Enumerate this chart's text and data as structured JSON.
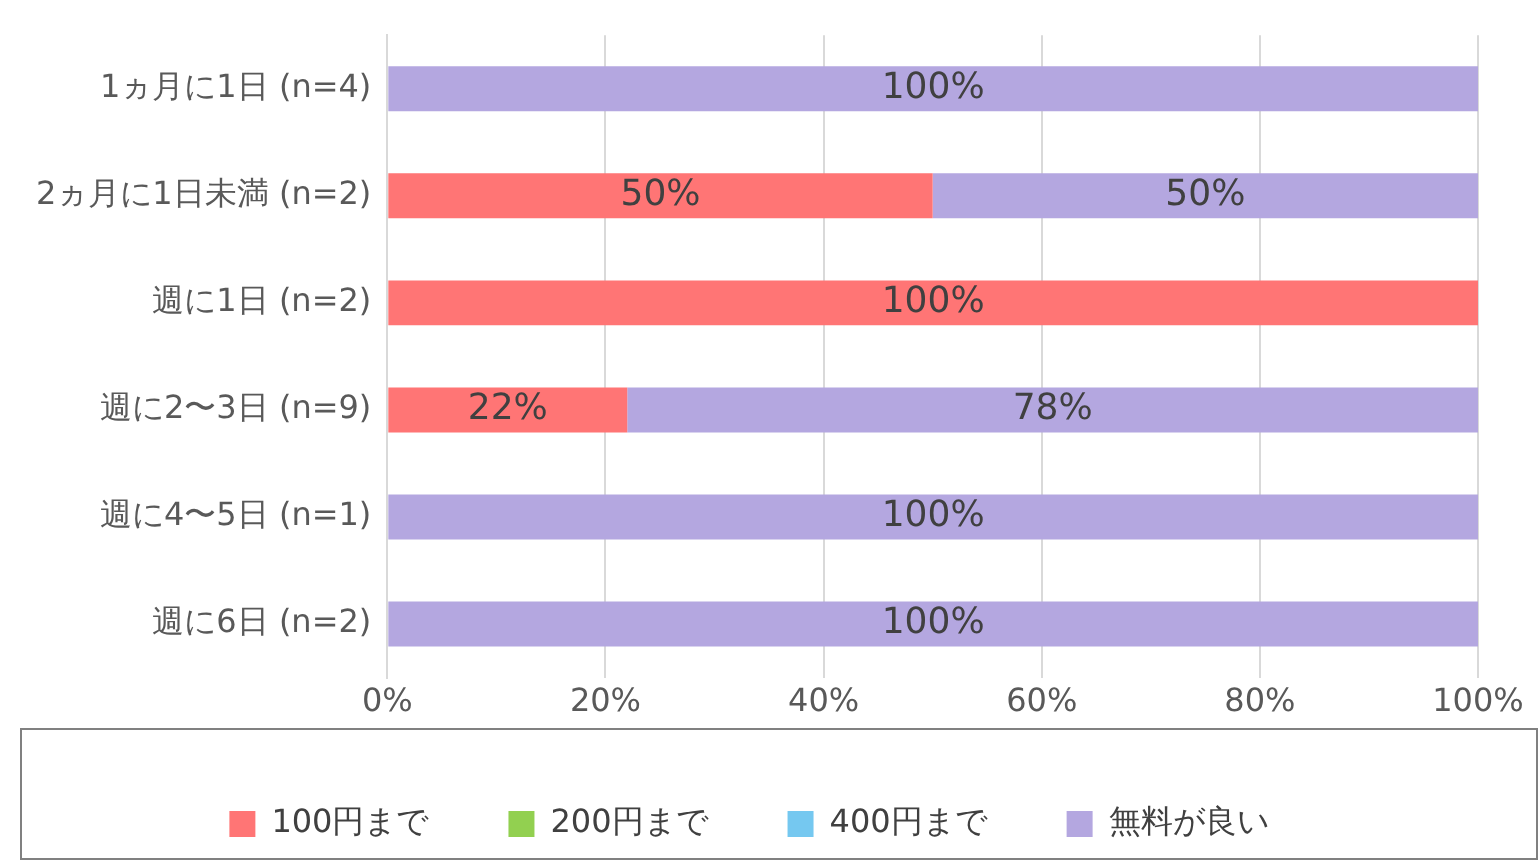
{
  "chart_data": {
    "type": "bar",
    "orientation": "horizontal",
    "stacked": true,
    "categories": [
      "1ヵ月に1日 (n=4)",
      "2ヵ月に1日未満 (n=2)",
      "週に1日 (n=2)",
      "週に2〜3日 (n=9)",
      "週に4〜5日 (n=1)",
      "週に6日 (n=2)"
    ],
    "series": [
      {
        "name": "100円まで",
        "color": "#ff7575",
        "values": [
          0,
          50,
          100,
          22,
          0,
          0
        ],
        "value_labels": [
          null,
          "50%",
          "100%",
          "22%",
          null,
          null
        ]
      },
      {
        "name": "200円まで",
        "color": "#92d050",
        "values": [
          0,
          0,
          0,
          0,
          0,
          0
        ],
        "value_labels": [
          null,
          null,
          null,
          null,
          null,
          null
        ]
      },
      {
        "name": "400円まで",
        "color": "#75c8f0",
        "values": [
          0,
          0,
          0,
          0,
          0,
          0
        ],
        "value_labels": [
          null,
          null,
          null,
          null,
          null,
          null
        ]
      },
      {
        "name": "無料が良い",
        "color": "#b4a7e0",
        "values": [
          100,
          50,
          0,
          78,
          100,
          100
        ],
        "value_labels": [
          "100%",
          "50%",
          null,
          "78%",
          "100%",
          "100%"
        ]
      }
    ],
    "xlim": [
      0,
      100
    ],
    "xticks": [
      {
        "value": 0,
        "label": "0%"
      },
      {
        "value": 20,
        "label": "20%"
      },
      {
        "value": 40,
        "label": "40%"
      },
      {
        "value": 60,
        "label": "60%"
      },
      {
        "value": 80,
        "label": "80%"
      },
      {
        "value": 100,
        "label": "100%"
      }
    ],
    "grid": "x",
    "legend": "bottom"
  }
}
